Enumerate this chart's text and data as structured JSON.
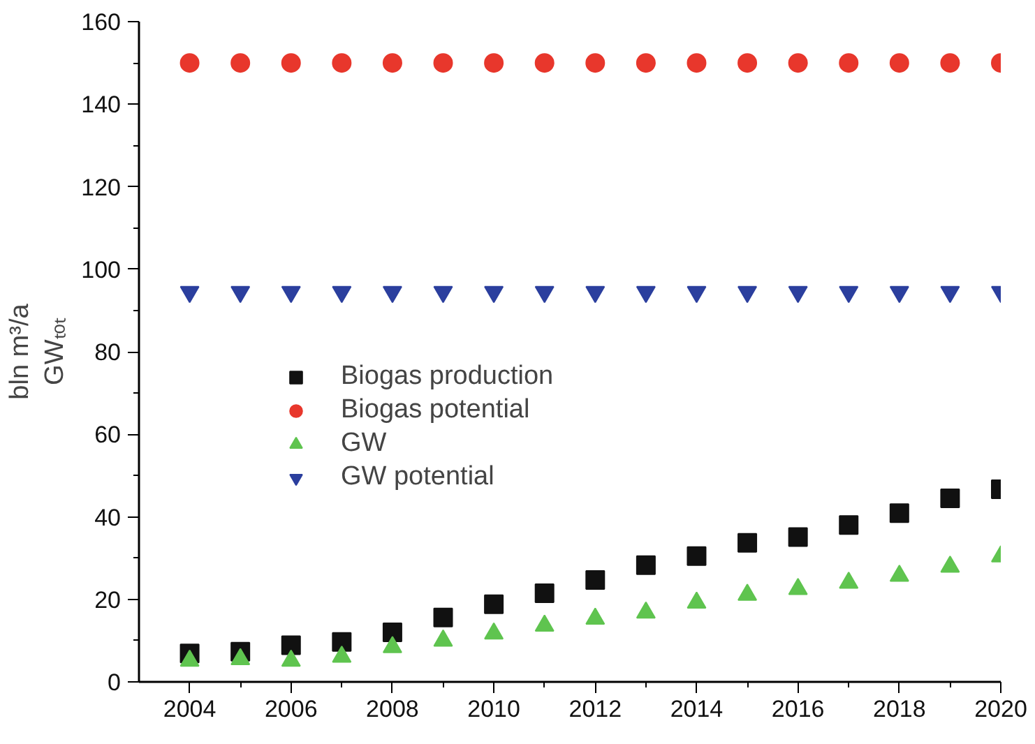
{
  "chart_data": {
    "type": "scatter",
    "x": [
      2004,
      2005,
      2006,
      2007,
      2008,
      2009,
      2010,
      2011,
      2012,
      2013,
      2014,
      2015,
      2016,
      2017,
      2018,
      2019,
      2020
    ],
    "ylabel": "bln m³/a\nGWₜₒₜ",
    "series": [
      {
        "name": "Biogas production",
        "color": "#111111",
        "marker": "square",
        "values": [
          6.9,
          7.3,
          8.9,
          9.7,
          12,
          15.6,
          18.8,
          21.5,
          24.7,
          28.3,
          30.5,
          33.7,
          35.1,
          38,
          40.9,
          44.5,
          46.7
        ]
      },
      {
        "name": "Biogas potential",
        "color": "#e8372c",
        "marker": "circle",
        "values": [
          150,
          150,
          150,
          150,
          150,
          150,
          150,
          150,
          150,
          150,
          150,
          150,
          150,
          150,
          150,
          150,
          150
        ]
      },
      {
        "name": "GW",
        "color": "#5fc44f",
        "marker": "triangle",
        "values": [
          5.1,
          5.5,
          5.1,
          6.1,
          8.4,
          10,
          11.7,
          13.6,
          15.3,
          16.8,
          19.2,
          21.1,
          22.5,
          24,
          25.7,
          27.9,
          30.4
        ]
      },
      {
        "name": "GW potential",
        "color": "#2b3f9e",
        "marker": "triangle",
        "values": [
          94.5,
          94.5,
          94.5,
          94.5,
          94.5,
          94.5,
          94.5,
          94.5,
          94.5,
          94.5,
          94.5,
          94.5,
          94.5,
          94.5,
          94.5,
          94.5,
          94.5
        ]
      }
    ],
    "xlim": [
      2003,
      2020
    ],
    "ylim": [
      0,
      160
    ],
    "xticks": [
      2004,
      2006,
      2008,
      2010,
      2012,
      2014,
      2016,
      2018,
      2020
    ],
    "yticks": [
      0,
      20,
      40,
      60,
      80,
      100,
      120,
      140,
      160
    ],
    "grid": false,
    "legend": "center"
  }
}
